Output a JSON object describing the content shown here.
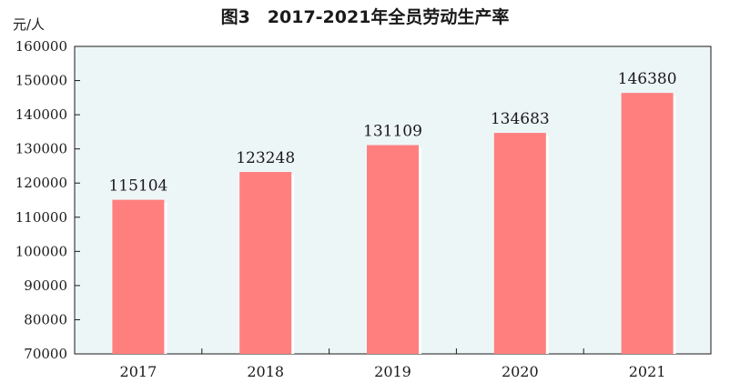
{
  "chart_data": {
    "type": "bar",
    "title": "图3　2017-2021年全员劳动生产率",
    "ylabel": "元/人",
    "categories": [
      "2017",
      "2018",
      "2019",
      "2020",
      "2021"
    ],
    "values": [
      115104,
      123248,
      131109,
      134683,
      146380
    ],
    "ylim": [
      70000,
      160000
    ],
    "yticks": [
      70000,
      80000,
      90000,
      100000,
      110000,
      120000,
      130000,
      140000,
      150000,
      160000
    ],
    "grid": false,
    "colors": {
      "bar": "#ff7f7f",
      "plot_bg": "#edf6f7",
      "axis": "#1a1a1a"
    }
  }
}
